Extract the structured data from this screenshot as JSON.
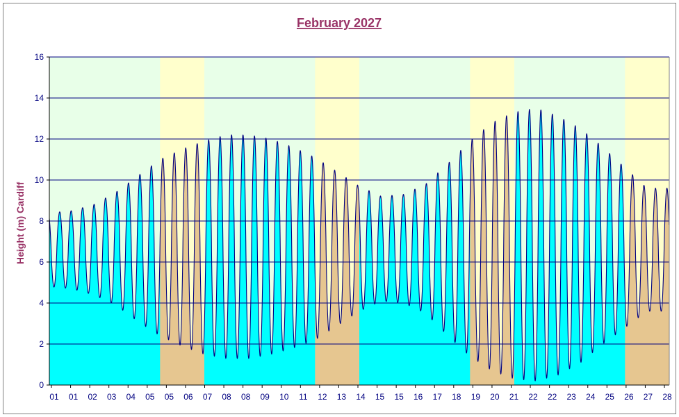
{
  "chart_data": {
    "type": "area",
    "title": "February 2027",
    "ylabel": "Height (m) Cardiff",
    "xlabel": "",
    "ylim": [
      0,
      16
    ],
    "yticks": [
      0,
      2,
      4,
      6,
      8,
      10,
      12,
      14,
      16
    ],
    "x_tick_labels": [
      "01",
      "01",
      "02",
      "03",
      "04",
      "05",
      "05",
      "06",
      "07",
      "08",
      "08",
      "09",
      "10",
      "11",
      "12",
      "13",
      "14",
      "15",
      "15",
      "16",
      "17",
      "18",
      "19",
      "20",
      "21",
      "22",
      "22",
      "23",
      "24",
      "25",
      "26",
      "27",
      "28"
    ],
    "weekend_days": [
      6,
      7,
      13,
      14,
      20,
      21,
      27,
      28
    ],
    "colors": {
      "weekday_background": "#e8ffe8",
      "weekend_background": "#ffffcc",
      "weekday_fill": "#00ffff",
      "weekend_fill": "#e6c690",
      "line": "#000080",
      "grid": "#000080",
      "title": "#993366"
    },
    "daily_tides": [
      {
        "day": 1,
        "high": 8.4,
        "low": 4.8
      },
      {
        "day": 2,
        "high": 8.5,
        "low": 4.7
      },
      {
        "day": 3,
        "high": 8.8,
        "low": 4.4
      },
      {
        "day": 4,
        "high": 9.4,
        "low": 3.9
      },
      {
        "day": 5,
        "high": 10.2,
        "low": 3.1
      },
      {
        "day": 6,
        "high": 11.0,
        "low": 2.4
      },
      {
        "day": 7,
        "high": 11.5,
        "low": 1.9
      },
      {
        "day": 8,
        "high": 11.9,
        "low": 1.5
      },
      {
        "day": 9,
        "high": 12.2,
        "low": 1.3
      },
      {
        "day": 10,
        "high": 12.2,
        "low": 1.3
      },
      {
        "day": 11,
        "high": 12.0,
        "low": 1.5
      },
      {
        "day": 12,
        "high": 11.6,
        "low": 1.8
      },
      {
        "day": 13,
        "high": 11.1,
        "low": 2.2
      },
      {
        "day": 14,
        "high": 10.4,
        "low": 2.9
      },
      {
        "day": 15,
        "high": 9.7,
        "low": 3.6
      },
      {
        "day": 16,
        "high": 9.2,
        "low": 4.1
      },
      {
        "day": 17,
        "high": 9.3,
        "low": 4.0
      },
      {
        "day": 18,
        "high": 9.8,
        "low": 3.5
      },
      {
        "day": 19,
        "high": 10.8,
        "low": 2.4
      },
      {
        "day": 20,
        "high": 11.9,
        "low": 1.4
      },
      {
        "day": 21,
        "high": 12.8,
        "low": 0.7
      },
      {
        "day": 22,
        "high": 13.3,
        "low": 0.3
      },
      {
        "day": 23,
        "high": 13.5,
        "low": 0.2
      },
      {
        "day": 24,
        "high": 13.1,
        "low": 0.5
      },
      {
        "day": 25,
        "high": 12.5,
        "low": 1.1
      },
      {
        "day": 26,
        "high": 11.6,
        "low": 2.0
      },
      {
        "day": 27,
        "high": 10.6,
        "low": 2.8
      },
      {
        "day": 28,
        "high": 9.6,
        "low": 3.6
      }
    ],
    "grid": true,
    "legend": "none"
  }
}
